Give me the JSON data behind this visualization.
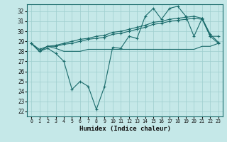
{
  "xlabel": "Humidex (Indice chaleur)",
  "bg_color": "#c5e8e8",
  "line_color": "#1a6b6b",
  "grid_color": "#9ecece",
  "x_ticks": [
    0,
    1,
    2,
    3,
    4,
    5,
    6,
    7,
    8,
    9,
    10,
    11,
    12,
    13,
    14,
    15,
    16,
    17,
    18,
    19,
    20,
    21,
    22,
    23
  ],
  "y_ticks": [
    22,
    23,
    24,
    25,
    26,
    27,
    28,
    29,
    30,
    31,
    32
  ],
  "ylim": [
    21.5,
    32.7
  ],
  "xlim": [
    -0.5,
    23.5
  ],
  "series": [
    [
      28.8,
      28.0,
      28.3,
      27.8,
      27.0,
      24.2,
      25.0,
      24.5,
      22.2,
      24.5,
      28.4,
      28.3,
      29.5,
      29.3,
      31.5,
      32.3,
      31.2,
      32.3,
      32.5,
      31.5,
      29.5,
      31.3,
      29.5,
      29.5
    ],
    [
      28.8,
      28.0,
      28.5,
      28.3,
      28.0,
      28.0,
      28.0,
      28.2,
      28.2,
      28.2,
      28.2,
      28.2,
      28.2,
      28.2,
      28.2,
      28.2,
      28.2,
      28.2,
      28.2,
      28.2,
      28.2,
      28.5,
      28.5,
      28.8
    ],
    [
      28.8,
      28.0,
      28.5,
      28.5,
      28.7,
      28.8,
      29.0,
      29.2,
      29.3,
      29.4,
      29.7,
      29.8,
      30.0,
      30.2,
      30.4,
      30.7,
      30.8,
      31.0,
      31.1,
      31.2,
      31.3,
      31.2,
      29.5,
      28.8
    ],
    [
      28.8,
      28.2,
      28.5,
      28.6,
      28.8,
      29.0,
      29.2,
      29.3,
      29.5,
      29.6,
      29.9,
      30.0,
      30.2,
      30.4,
      30.6,
      30.9,
      31.0,
      31.2,
      31.3,
      31.4,
      31.5,
      31.3,
      29.7,
      28.9
    ]
  ],
  "markers": [
    true,
    false,
    true,
    true
  ]
}
